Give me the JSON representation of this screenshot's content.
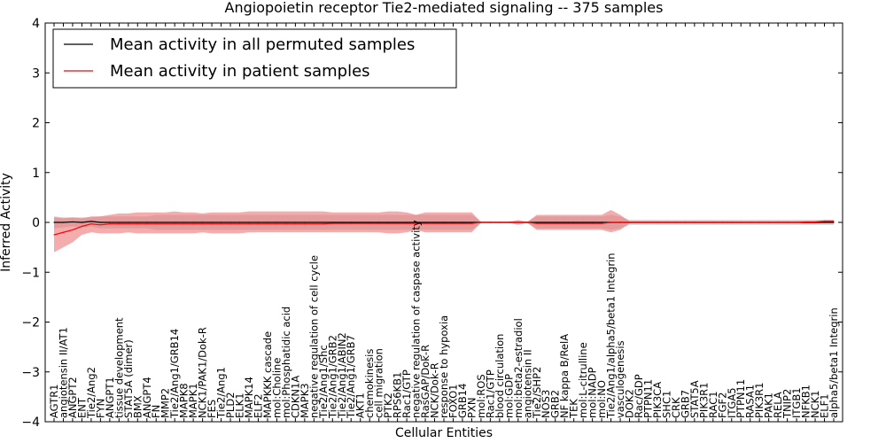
{
  "chart_data": {
    "type": "line",
    "title": "Angiopoietin receptor Tie2-mediated signaling -- 375 samples",
    "xlabel": "Cellular Entities",
    "ylabel": "Inferred Activity",
    "ylim": [
      -4,
      4
    ],
    "yticks": [
      -4,
      -3,
      -2,
      -1,
      0,
      1,
      2,
      3,
      4
    ],
    "legend_location": "top-left",
    "colors": {
      "permuted": "#000000",
      "patient": "#ff0000",
      "patient_band": "#f08080",
      "permuted_band": "#bbbbbb"
    },
    "categories": [
      "AGTR1",
      "angiotensin II/AT1",
      "ANGPT2",
      "ENT",
      "Tie2/Ang2",
      "FYN",
      "ANGPT1",
      "tissue development",
      "STAT5A (dimer)",
      "BMX",
      "ANGPT4",
      "FN",
      "MMP2",
      "Tie2/Ang1/GRB14",
      "MAPK8",
      "MAPK1",
      "NCK1/PAK1/Dok-R",
      "FES",
      "Tie2/Ang1",
      "PLD2",
      "ELK1",
      "MAPK14",
      "ELF2",
      "MAPKKK cascade",
      "mol:Choline",
      "mol:Phosphatidic acid",
      "CDKN1A",
      "MAPK3",
      "negative regulation of cell cycle",
      "Tie2/Ang1/Shc",
      "Tie2/Ang1/GRB2",
      "Tie2/Ang1/ABIN2",
      "Tie2/Ang1/GRB7",
      "AKT1",
      "chemokinesis",
      "cell migration",
      "PTK2",
      "RPS6KB1",
      "Rac1/GTP",
      "negative regulation of caspase activity",
      "RasGAP/Dok-R",
      "NCK/Dok-R",
      "response to hypoxia",
      "FOXO1",
      "GRB14",
      "PXN",
      "mol:ROS",
      "Rac1/GTP",
      "blood circulation",
      "mol:GDP",
      "mol:beta2-estradiol",
      "angiotensin II",
      "Tie2/SHP2",
      "NOS3",
      "GRB2",
      "NF kappa B/RelA",
      "TEK",
      "mol:L-citrulline",
      "mol:NADP",
      "mol:NO",
      "Tie2/Ang1/alpha5/beta1 Integrin",
      "vasculogenesis",
      "DOK2",
      "Rac/GDP",
      "PTPN11",
      "PIK3CA",
      "SHC1",
      "CRK",
      "GRB7",
      "STAT5A",
      "PIK3R1",
      "RAC1",
      "FGF2",
      "ITGA5",
      "PTPN11",
      "RASA1",
      "PIK3R1",
      "PAK1",
      "RELA",
      "TNIP2",
      "ITGB1",
      "NFKB1",
      "NCK1",
      "ELF1",
      "alpha5/beta1 Integrin"
    ],
    "series": [
      {
        "name": "Mean activity in all permuted samples",
        "values": [
          0.0,
          0.0,
          0.01,
          0.0,
          0.02,
          0.0,
          0.0,
          0.0,
          0.0,
          0.0,
          0.0,
          0.0,
          0.0,
          0.0,
          0.0,
          0.0,
          0.0,
          0.0,
          0.0,
          0.0,
          0.0,
          0.0,
          0.0,
          0.0,
          0.0,
          0.0,
          0.0,
          0.0,
          0.0,
          0.0,
          0.0,
          0.0,
          0.0,
          0.0,
          0.0,
          0.0,
          0.0,
          0.0,
          0.0,
          0.0,
          0.0,
          0.0,
          0.0,
          0.0,
          0.0,
          0.0,
          0.0,
          0.0,
          0.0,
          0.0,
          0.0,
          0.0,
          0.0,
          0.0,
          0.0,
          0.0,
          0.0,
          0.0,
          0.0,
          0.0,
          0.0,
          0.0,
          0.0,
          0.0,
          0.0,
          0.0,
          0.0,
          0.0,
          0.0,
          0.0,
          0.0,
          0.0,
          0.0,
          0.0,
          0.0,
          0.0,
          0.0,
          0.0,
          0.0,
          0.0,
          0.0,
          0.0,
          0.0,
          0.0,
          0.0
        ],
        "lower": [
          -0.12,
          -0.1,
          -0.08,
          -0.1,
          -0.08,
          -0.12,
          -0.12,
          -0.12,
          -0.12,
          -0.12,
          -0.12,
          -0.15,
          -0.15,
          -0.15,
          -0.15,
          -0.15,
          -0.15,
          -0.15,
          -0.15,
          -0.15,
          -0.15,
          -0.15,
          -0.15,
          -0.15,
          -0.15,
          -0.15,
          -0.15,
          -0.15,
          -0.15,
          -0.15,
          -0.15,
          -0.15,
          -0.15,
          -0.15,
          -0.15,
          -0.15,
          -0.15,
          -0.15,
          -0.15,
          -0.15,
          -0.15,
          -0.15,
          -0.15,
          -0.15,
          -0.15,
          -0.15,
          -0.02,
          -0.02,
          -0.02,
          -0.02,
          -0.02,
          -0.02,
          -0.12,
          -0.12,
          -0.12,
          -0.12,
          -0.12,
          -0.12,
          -0.12,
          -0.12,
          -0.15,
          -0.12,
          -0.05,
          -0.05,
          -0.05,
          -0.05,
          -0.05,
          -0.05,
          -0.05,
          -0.05,
          -0.05,
          -0.05,
          -0.05,
          -0.05,
          -0.05,
          -0.05,
          -0.05,
          -0.05,
          -0.05,
          -0.05,
          -0.05,
          -0.05,
          -0.05,
          -0.05,
          -0.05
        ],
        "upper": [
          0.12,
          0.1,
          0.1,
          0.1,
          0.1,
          0.12,
          0.12,
          0.12,
          0.12,
          0.12,
          0.12,
          0.15,
          0.15,
          0.15,
          0.15,
          0.15,
          0.15,
          0.15,
          0.15,
          0.15,
          0.15,
          0.15,
          0.15,
          0.15,
          0.15,
          0.15,
          0.15,
          0.15,
          0.15,
          0.15,
          0.15,
          0.15,
          0.15,
          0.15,
          0.15,
          0.15,
          0.15,
          0.15,
          0.15,
          0.15,
          0.15,
          0.15,
          0.15,
          0.15,
          0.15,
          0.15,
          0.02,
          0.02,
          0.02,
          0.02,
          0.02,
          0.02,
          0.12,
          0.12,
          0.12,
          0.12,
          0.12,
          0.12,
          0.12,
          0.12,
          0.15,
          0.12,
          0.05,
          0.05,
          0.05,
          0.05,
          0.05,
          0.05,
          0.05,
          0.05,
          0.05,
          0.05,
          0.05,
          0.05,
          0.05,
          0.05,
          0.05,
          0.05,
          0.05,
          0.05,
          0.05,
          0.05,
          0.05,
          0.05,
          0.05
        ]
      },
      {
        "name": "Mean activity in patient samples",
        "values": [
          -0.25,
          -0.2,
          -0.15,
          -0.08,
          -0.03,
          -0.05,
          -0.03,
          -0.03,
          -0.03,
          -0.03,
          -0.03,
          -0.03,
          -0.03,
          -0.03,
          -0.03,
          -0.03,
          -0.03,
          -0.03,
          -0.03,
          -0.03,
          -0.03,
          -0.03,
          -0.03,
          -0.03,
          -0.03,
          -0.03,
          -0.03,
          -0.03,
          -0.03,
          -0.03,
          -0.02,
          -0.02,
          -0.02,
          -0.02,
          -0.02,
          -0.02,
          -0.02,
          -0.02,
          -0.02,
          -0.02,
          -0.02,
          -0.02,
          -0.02,
          -0.02,
          -0.02,
          -0.02,
          0.0,
          0.0,
          0.0,
          0.0,
          0.0,
          0.0,
          -0.02,
          -0.02,
          -0.02,
          -0.02,
          -0.02,
          -0.02,
          -0.02,
          -0.02,
          0.0,
          0.0,
          0.0,
          0.0,
          0.0,
          0.0,
          0.0,
          0.0,
          0.0,
          0.0,
          0.0,
          0.0,
          0.0,
          0.0,
          0.0,
          0.0,
          0.0,
          0.0,
          0.0,
          0.0,
          0.0,
          0.01,
          0.01,
          0.02,
          0.02
        ],
        "lower": [
          -0.6,
          -0.5,
          -0.4,
          -0.25,
          -0.2,
          -0.22,
          -0.22,
          -0.22,
          -0.2,
          -0.22,
          -0.22,
          -0.22,
          -0.22,
          -0.22,
          -0.22,
          -0.22,
          -0.2,
          -0.22,
          -0.22,
          -0.22,
          -0.22,
          -0.2,
          -0.2,
          -0.2,
          -0.2,
          -0.2,
          -0.2,
          -0.2,
          -0.2,
          -0.2,
          -0.2,
          -0.2,
          -0.2,
          -0.2,
          -0.2,
          -0.2,
          -0.22,
          -0.22,
          -0.2,
          -0.15,
          -0.2,
          -0.2,
          -0.2,
          -0.2,
          -0.2,
          -0.2,
          -0.01,
          -0.01,
          -0.01,
          -0.01,
          -0.05,
          -0.01,
          -0.15,
          -0.15,
          -0.15,
          -0.15,
          -0.15,
          -0.15,
          -0.15,
          -0.15,
          -0.2,
          -0.15,
          -0.02,
          -0.02,
          -0.02,
          -0.02,
          -0.02,
          -0.02,
          -0.02,
          -0.02,
          -0.02,
          -0.02,
          -0.02,
          -0.02,
          -0.02,
          -0.02,
          -0.02,
          -0.02,
          -0.02,
          -0.02,
          -0.02,
          -0.02,
          -0.02,
          -0.01,
          -0.01
        ],
        "upper": [
          0.1,
          0.08,
          0.1,
          0.08,
          0.12,
          0.12,
          0.15,
          0.18,
          0.18,
          0.2,
          0.2,
          0.2,
          0.2,
          0.22,
          0.2,
          0.2,
          0.18,
          0.2,
          0.2,
          0.2,
          0.2,
          0.22,
          0.22,
          0.22,
          0.22,
          0.22,
          0.22,
          0.22,
          0.22,
          0.22,
          0.2,
          0.2,
          0.2,
          0.2,
          0.2,
          0.2,
          0.22,
          0.22,
          0.2,
          0.15,
          0.2,
          0.2,
          0.2,
          0.2,
          0.2,
          0.2,
          0.01,
          0.01,
          0.01,
          0.01,
          0.05,
          0.01,
          0.15,
          0.15,
          0.15,
          0.15,
          0.15,
          0.15,
          0.15,
          0.15,
          0.25,
          0.15,
          0.02,
          0.02,
          0.02,
          0.02,
          0.02,
          0.02,
          0.02,
          0.02,
          0.02,
          0.02,
          0.02,
          0.02,
          0.02,
          0.02,
          0.02,
          0.02,
          0.02,
          0.02,
          0.02,
          0.02,
          0.02,
          0.05,
          0.05
        ]
      }
    ]
  }
}
